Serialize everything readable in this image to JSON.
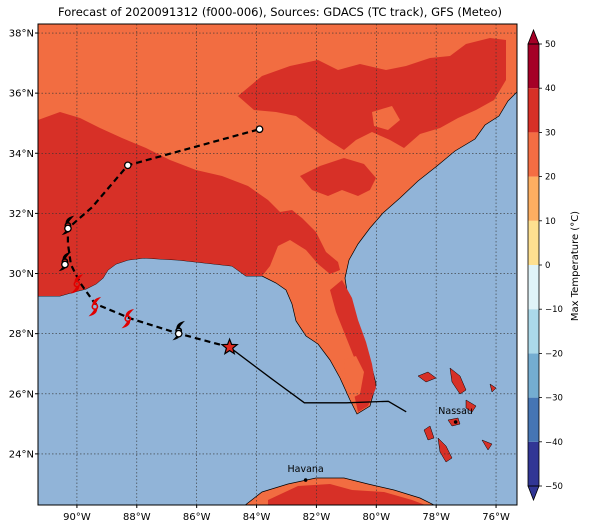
{
  "title": "Forecast of 2020091312 (f000-006), Sources: GDACS (TC track), GFS (Meteo)",
  "map": {
    "lon_range": [
      -91.3,
      -75.3
    ],
    "lat_range": [
      22.3,
      38.3
    ],
    "lon_ticks": [
      "90°W",
      "88°W",
      "86°W",
      "84°W",
      "82°W",
      "80°W",
      "78°W",
      "76°W"
    ],
    "lat_ticks": [
      "24°N",
      "26°N",
      "28°N",
      "30°N",
      "32°N",
      "34°N",
      "36°N",
      "38°N"
    ],
    "grid": true,
    "colors": {
      "ocean": "#91b4d8",
      "temp_20_30": "#f26d41",
      "temp_30_40": "#d73027"
    }
  },
  "cities": [
    {
      "name": "Havana",
      "lon": -82.36,
      "lat": 23.13
    },
    {
      "name": "Nassau",
      "lon": -77.35,
      "lat": 25.06
    }
  ],
  "track": {
    "past_line": [
      [
        -79.0,
        25.4
      ],
      [
        -79.6,
        25.75
      ],
      [
        -81.0,
        25.7
      ],
      [
        -82.4,
        25.7
      ],
      [
        -83.5,
        26.5
      ],
      [
        -84.9,
        27.55
      ]
    ],
    "forecast_line": [
      [
        -84.9,
        27.55
      ],
      [
        -86.6,
        28.0
      ],
      [
        -88.2,
        28.5
      ],
      [
        -89.4,
        29.0
      ],
      [
        -89.9,
        29.7
      ],
      [
        -90.2,
        30.3
      ],
      [
        -90.3,
        31.0
      ],
      [
        -90.3,
        31.5
      ],
      [
        -89.5,
        32.2
      ],
      [
        -88.3,
        33.6
      ],
      [
        -83.9,
        34.8
      ]
    ],
    "current_position": [
      -84.9,
      27.55
    ],
    "points": [
      [
        -86.6,
        28.0
      ],
      [
        -90.4,
        30.3
      ],
      [
        -90.3,
        31.5
      ],
      [
        -88.3,
        33.6
      ],
      [
        -83.9,
        34.8
      ]
    ],
    "red_symbols": [
      [
        -88.3,
        28.5
      ],
      [
        -89.4,
        28.9
      ],
      [
        -90.0,
        29.65
      ]
    ],
    "black_symbols": [
      [
        -86.6,
        28.1
      ],
      [
        -90.3,
        31.6
      ],
      [
        -90.4,
        30.4
      ]
    ]
  },
  "colorbar": {
    "label": "Max Temperature (°C)",
    "min": -50,
    "max": 50,
    "tick_labels": [
      "−50",
      "−40",
      "−30",
      "−20",
      "−10",
      "0",
      "10",
      "20",
      "30",
      "40",
      "50"
    ],
    "colors": [
      "#313695",
      "#4575b4",
      "#74add1",
      "#abd9e9",
      "#e0f3f8",
      "#fee090",
      "#fdae61",
      "#f46d43",
      "#d73027",
      "#a50026"
    ]
  }
}
